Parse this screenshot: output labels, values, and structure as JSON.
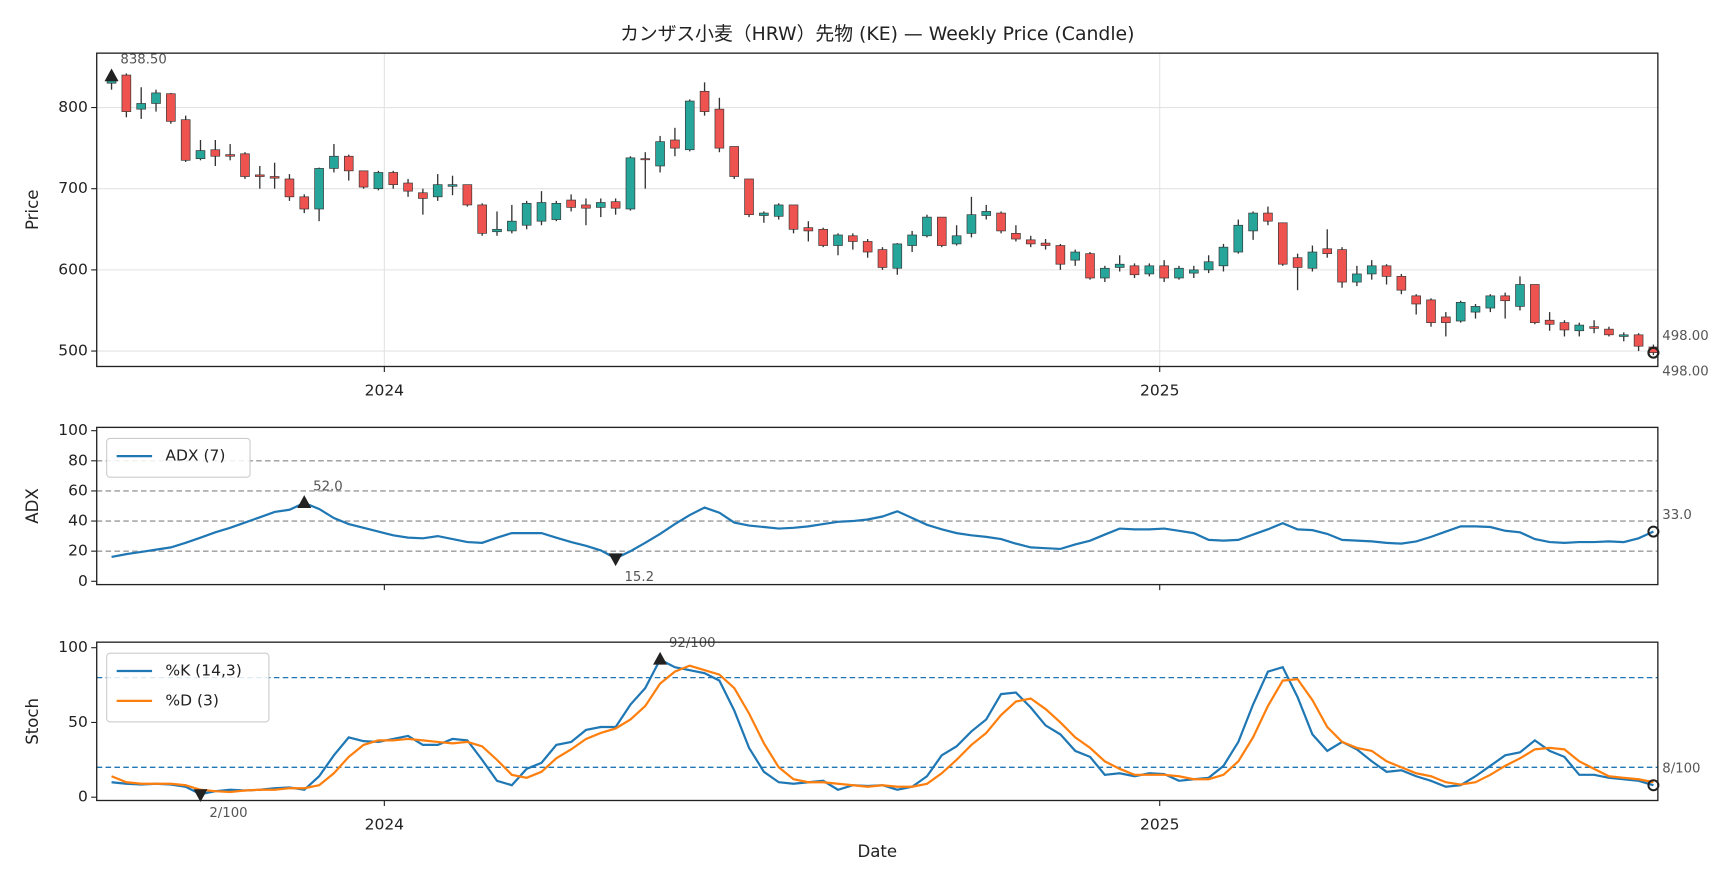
{
  "chart_data": [
    {
      "type": "candlestick",
      "title": "カンザス小麦（HRW）先物 (KE) — Weekly Price (Candle)",
      "ylabel": "Price",
      "up_color": "#26a69a",
      "down_color": "#ef5350",
      "wick_color": "#333333",
      "grid": true,
      "xlim": [
        -1,
        104.3
      ],
      "xticks": [
        {
          "value": 18.4,
          "label": "2024"
        },
        {
          "value": 70.7,
          "label": "2025"
        }
      ],
      "ylim": [
        481,
        867
      ],
      "yticks": [
        500,
        600,
        700,
        800
      ],
      "open": [
        830,
        840,
        798,
        805,
        817,
        785,
        737,
        748,
        742,
        743,
        717,
        715,
        712,
        690,
        675,
        725,
        740,
        722,
        700,
        720,
        707,
        695,
        690,
        703,
        705,
        680,
        647,
        648,
        655,
        660,
        662,
        686,
        680,
        677,
        684,
        675,
        737,
        728,
        760,
        748,
        820,
        798,
        752,
        712,
        667,
        666,
        680,
        652,
        650,
        630,
        642,
        635,
        625,
        602,
        630,
        642,
        665,
        632,
        645,
        667,
        670,
        645,
        637,
        633,
        630,
        612,
        620,
        590,
        603,
        605,
        595,
        605,
        590,
        596,
        600,
        605,
        622,
        648,
        670,
        658,
        615,
        602,
        626,
        625,
        585,
        595,
        605,
        592,
        568,
        563,
        542,
        537,
        548,
        553,
        568,
        555,
        582,
        538,
        535,
        525,
        530,
        527,
        518,
        520,
        505
      ],
      "high": [
        838.5,
        842,
        825,
        822,
        818,
        790,
        760,
        760,
        755,
        745,
        728,
        732,
        718,
        693,
        726,
        755,
        742,
        722,
        722,
        722,
        712,
        700,
        718,
        716,
        705,
        682,
        672,
        680,
        685,
        697,
        685,
        693,
        688,
        688,
        688,
        740,
        745,
        765,
        775,
        810,
        831,
        812,
        752,
        712,
        672,
        682,
        680,
        660,
        652,
        645,
        645,
        638,
        628,
        633,
        648,
        668,
        665,
        655,
        690,
        680,
        672,
        655,
        642,
        638,
        632,
        625,
        622,
        605,
        618,
        608,
        608,
        612,
        605,
        605,
        618,
        632,
        662,
        672,
        678,
        658,
        620,
        630,
        650,
        628,
        605,
        612,
        607,
        595,
        570,
        565,
        548,
        562,
        558,
        570,
        572,
        592,
        582,
        548,
        538,
        535,
        538,
        530,
        523,
        522,
        508
      ],
      "low": [
        822,
        788,
        786,
        795,
        780,
        733,
        735,
        728,
        735,
        712,
        700,
        700,
        685,
        670,
        660,
        720,
        710,
        700,
        698,
        700,
        690,
        668,
        685,
        692,
        678,
        642,
        642,
        645,
        650,
        655,
        660,
        672,
        655,
        665,
        668,
        673,
        700,
        720,
        740,
        746,
        790,
        745,
        712,
        665,
        658,
        662,
        645,
        635,
        628,
        618,
        625,
        615,
        600,
        594,
        622,
        640,
        628,
        630,
        640,
        662,
        645,
        635,
        628,
        625,
        600,
        605,
        588,
        585,
        598,
        590,
        592,
        585,
        588,
        590,
        596,
        598,
        620,
        637,
        655,
        605,
        575,
        598,
        615,
        578,
        580,
        588,
        582,
        570,
        545,
        530,
        518,
        535,
        540,
        548,
        540,
        550,
        533,
        525,
        518,
        518,
        522,
        518,
        512,
        500,
        495
      ],
      "close": [
        835,
        795,
        805,
        818,
        783,
        735,
        747,
        740,
        740,
        715,
        715,
        713,
        690,
        675,
        725,
        740,
        722,
        702,
        720,
        705,
        697,
        688,
        705,
        705,
        680,
        645,
        650,
        660,
        682,
        683,
        682,
        677,
        676,
        683,
        676,
        738,
        736,
        758,
        750,
        808,
        795,
        750,
        715,
        668,
        670,
        680,
        650,
        648,
        630,
        643,
        635,
        622,
        603,
        632,
        643,
        665,
        630,
        642,
        668,
        672,
        648,
        638,
        632,
        630,
        607,
        622,
        590,
        602,
        607,
        594,
        605,
        590,
        602,
        600,
        610,
        628,
        655,
        670,
        660,
        607,
        603,
        622,
        620,
        585,
        595,
        605,
        592,
        575,
        558,
        535,
        535,
        560,
        555,
        568,
        562,
        582,
        535,
        533,
        526,
        532,
        528,
        520,
        520,
        506,
        498
      ],
      "annotations": [
        {
          "x": 0,
          "y": 838.5,
          "label": "838.50",
          "marker": "up",
          "label_side": "above"
        },
        {
          "x": 104,
          "y": 498,
          "label": "498.00",
          "marker": "circle",
          "label_side": "above"
        },
        {
          "x": 104,
          "y": 498,
          "label": "498.00",
          "marker": "circle",
          "label_side": "below"
        }
      ]
    },
    {
      "type": "line",
      "ylabel": "ADX",
      "legend": "upper left",
      "xlim": [
        -1,
        104.3
      ],
      "ylim": [
        -2.2,
        102.2
      ],
      "yticks": [
        0,
        20,
        40,
        60,
        80,
        100
      ],
      "hlines": [
        20,
        40,
        60,
        80
      ],
      "hline_color": "#999999",
      "series": [
        {
          "name": "ADX (7)",
          "color": "#1f77b4",
          "values": [
            16.2,
            18,
            19.5,
            21,
            22.5,
            25.5,
            29,
            32.5,
            35.5,
            39,
            42.5,
            46,
            47.5,
            52.0,
            48,
            42,
            38,
            35.5,
            33,
            30.5,
            29,
            28.5,
            30,
            28,
            26,
            25.5,
            29,
            32,
            32,
            32,
            29,
            26,
            23.5,
            20.5,
            15.2,
            20,
            25.5,
            31.5,
            38,
            44,
            49,
            45.5,
            39,
            37,
            36,
            35,
            35.5,
            36.5,
            38,
            39.5,
            40,
            41,
            43,
            46.5,
            42,
            37.5,
            34.5,
            32,
            30.5,
            29.5,
            28,
            25,
            22.5,
            22,
            21.5,
            24.5,
            27,
            31,
            35,
            34.5,
            34.5,
            35,
            33.5,
            32,
            27.5,
            27,
            27.5,
            31,
            34.5,
            38.5,
            34.5,
            34,
            31.5,
            27.5,
            27,
            26.5,
            25.5,
            25,
            26.5,
            29.5,
            33,
            36.5,
            36.5,
            36,
            33.5,
            32.5,
            28,
            26,
            25.5,
            26,
            26,
            26.5,
            26,
            28.5,
            33.0
          ]
        }
      ],
      "annotations": [
        {
          "x": 13,
          "y": 52.0,
          "label": "52.0",
          "marker": "up",
          "label_side": "above"
        },
        {
          "x": 34,
          "y": 15.2,
          "label": "15.2",
          "marker": "down",
          "label_side": "below"
        },
        {
          "x": 104,
          "y": 33.0,
          "label": "33.0",
          "marker": "circle",
          "label_side": "above"
        }
      ]
    },
    {
      "type": "line",
      "ylabel": "Stoch",
      "xlabel": "Date",
      "legend": "upper left",
      "xlim": [
        -1,
        104.3
      ],
      "xticks": [
        {
          "value": 18.4,
          "label": "2024"
        },
        {
          "value": 70.7,
          "label": "2025"
        }
      ],
      "ylim": [
        -2.2,
        103.7
      ],
      "yticks": [
        0,
        50,
        100
      ],
      "hlines": [
        20,
        80
      ],
      "hline_color": "#1f77b4",
      "series": [
        {
          "name": "%K (14,3)",
          "color": "#1f77b4",
          "values": [
            10,
            9,
            8.5,
            9,
            8.5,
            7,
            2,
            4,
            5,
            4.5,
            5,
            6,
            6.5,
            5,
            14,
            28,
            40,
            37.5,
            37,
            39,
            41,
            35,
            35,
            39,
            38,
            25,
            11,
            8,
            19,
            23,
            35,
            37,
            45,
            47,
            47,
            62,
            73,
            92,
            87,
            85,
            83,
            78,
            58,
            33,
            17,
            10,
            9,
            10,
            11,
            5,
            8,
            7.5,
            8,
            5,
            7,
            14,
            28,
            34,
            44,
            52,
            69,
            70,
            60,
            48,
            42,
            31,
            27,
            15,
            16,
            14,
            16,
            15.5,
            11,
            12,
            13,
            21,
            37,
            62,
            84,
            87,
            67,
            42,
            31,
            37,
            32,
            24,
            17,
            18,
            14,
            11,
            7,
            8,
            14,
            21,
            28,
            30,
            38,
            31,
            27,
            15,
            15,
            13,
            12,
            11,
            8
          ]
        },
        {
          "name": "%D (3)",
          "color": "#ff7f0e",
          "values": [
            14,
            10,
            9,
            9,
            9,
            8,
            5,
            4,
            3.5,
            4.5,
            5,
            5,
            6,
            6,
            8,
            16,
            27,
            35,
            38,
            38,
            39,
            38,
            37,
            36,
            37,
            34,
            25,
            15,
            13,
            17,
            26,
            32,
            39,
            43,
            46,
            52,
            61,
            76,
            84,
            88,
            85,
            82,
            73,
            56,
            36,
            20,
            12,
            10,
            10,
            9,
            8,
            7,
            8,
            7,
            7,
            9,
            16,
            25,
            35,
            43,
            55,
            64,
            66,
            59,
            50,
            40,
            33,
            24,
            19,
            15,
            15,
            15,
            14,
            12,
            12,
            15,
            24,
            40,
            61,
            78,
            79,
            65,
            47,
            37,
            33,
            31,
            24,
            20,
            16,
            14,
            10,
            8.5,
            10,
            15,
            21,
            26,
            32,
            33,
            32,
            24,
            19,
            14,
            13,
            12,
            10
          ]
        }
      ],
      "annotations": [
        {
          "x": 37,
          "y": 92,
          "label": "92/100",
          "marker": "up",
          "label_side": "above"
        },
        {
          "x": 6,
          "y": 2,
          "label": "2/100",
          "marker": "down",
          "label_side": "below"
        },
        {
          "x": 104,
          "y": 8,
          "label": "8/100",
          "marker": "circle",
          "label_side": "above"
        }
      ]
    }
  ]
}
